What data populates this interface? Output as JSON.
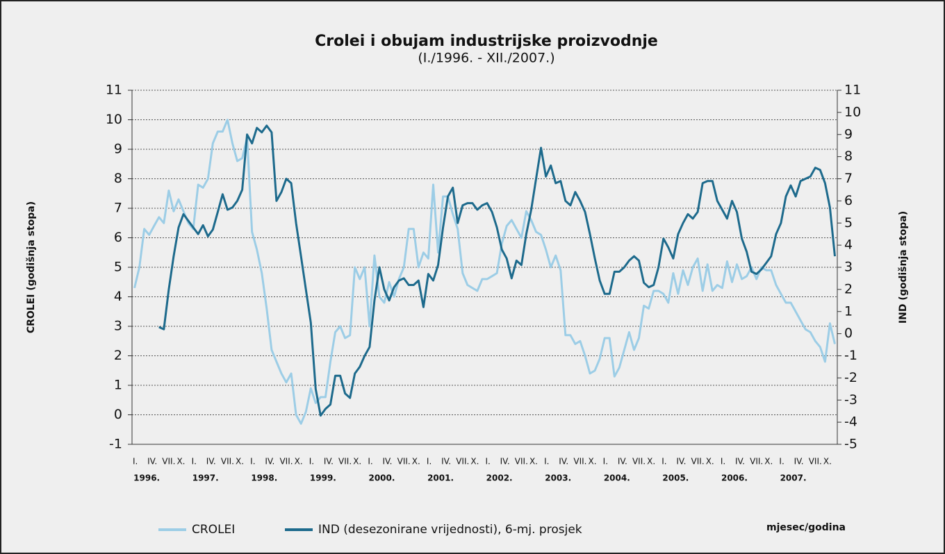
{
  "chart_data": {
    "type": "line",
    "title": "Crolei i obujam industrijske proizvodnje",
    "subtitle": "(I./1996. - XII./2007.)",
    "ylabel": "CROLEI (godišnja stopa)",
    "y2label": "IND (godišnja stopa)",
    "xlabel": "mjesec/godina",
    "categories": [
      "I.",
      null,
      null,
      "IV.",
      null,
      null,
      "VII.",
      null,
      null,
      "X.",
      null,
      null,
      "I.",
      null,
      null,
      "IV.",
      null,
      null,
      "VII.",
      null,
      null,
      "X.",
      null,
      null,
      "I.",
      null,
      null,
      "IV.",
      null,
      null,
      "VII.",
      null,
      null,
      "X.",
      null,
      null,
      "I.",
      null,
      null,
      "IV.",
      null,
      null,
      "VII.",
      null,
      null,
      "X.",
      null,
      null,
      "I.",
      null,
      null,
      "IV.",
      null,
      null,
      "VII.",
      null,
      null,
      "X.",
      null,
      null,
      "I.",
      null,
      null,
      "IV.",
      null,
      null,
      "VII.",
      null,
      null,
      "X.",
      null,
      null,
      "I.",
      null,
      null,
      "IV.",
      null,
      null,
      "VII.",
      null,
      null,
      "X.",
      null,
      null,
      "I.",
      null,
      null,
      "IV.",
      null,
      null,
      "VII.",
      null,
      null,
      "X.",
      null,
      null,
      "I.",
      null,
      null,
      "IV.",
      null,
      null,
      "VII.",
      null,
      null,
      "X.",
      null,
      null,
      "I.",
      null,
      null,
      "IV.",
      null,
      null,
      "VII.",
      null,
      null,
      "X.",
      null,
      null,
      "I.",
      null,
      null,
      "IV.",
      null,
      null,
      "VII.",
      null,
      null,
      "X.",
      null,
      null,
      "I.",
      null,
      null,
      "IV.",
      null,
      null,
      "VII.",
      null,
      null,
      "X.",
      null,
      null
    ],
    "years": [
      "1996.",
      "1997.",
      "1998.",
      "1999.",
      "2000.",
      "2001.",
      "2002.",
      "2003.",
      "2004.",
      "2005.",
      "2006.",
      "2007."
    ],
    "ylim": [
      -1,
      11
    ],
    "yticks": [
      -1,
      0,
      1,
      2,
      3,
      4,
      5,
      6,
      7,
      8,
      9,
      10,
      11
    ],
    "y2lim": [
      -5,
      11
    ],
    "y2ticks": [
      -5,
      -4,
      -3,
      -2,
      -1,
      0,
      1,
      2,
      3,
      4,
      5,
      6,
      7,
      8,
      9,
      10,
      11
    ],
    "grid": true,
    "series": [
      {
        "name": "CROLEI",
        "color": "#9ccde6",
        "values": [
          4.3,
          5.0,
          6.3,
          6.1,
          6.4,
          6.7,
          6.5,
          7.6,
          6.9,
          7.3,
          6.9,
          6.5,
          6.3,
          7.8,
          7.7,
          8.0,
          9.2,
          9.6,
          9.6,
          10.0,
          9.2,
          8.6,
          8.7,
          9.4,
          6.2,
          5.6,
          4.8,
          3.6,
          2.2,
          1.8,
          1.4,
          1.1,
          1.4,
          0.0,
          -0.3,
          0.1,
          0.9,
          0.4,
          0.6,
          0.6,
          1.8,
          2.8,
          3.0,
          2.6,
          2.7,
          5.0,
          4.6,
          5.0,
          3.0,
          5.4,
          4.0,
          3.8,
          4.5,
          4.0,
          4.6,
          5.0,
          6.3,
          6.3,
          5.0,
          5.5,
          5.3,
          7.8,
          5.5,
          7.4,
          7.4,
          6.8,
          6.3,
          4.8,
          4.4,
          4.3,
          4.2,
          4.6,
          4.6,
          4.7,
          4.8,
          5.8,
          6.4,
          6.6,
          6.3,
          6.0,
          6.9,
          6.6,
          6.2,
          6.1,
          5.6,
          5.0,
          5.4,
          4.9,
          2.7,
          2.7,
          2.4,
          2.5,
          2.0,
          1.4,
          1.5,
          1.9,
          2.6,
          2.6,
          1.3,
          1.6,
          2.2,
          2.8,
          2.2,
          2.6,
          3.7,
          3.6,
          4.2,
          4.2,
          4.1,
          3.8,
          4.8,
          4.1,
          4.9,
          4.4,
          5.0,
          5.3,
          4.2,
          5.1,
          4.2,
          4.4,
          4.3,
          5.2,
          4.5,
          5.1,
          4.6,
          4.7,
          5.0,
          4.6,
          5.0,
          4.9,
          4.9,
          4.4,
          4.1,
          3.8,
          3.8,
          3.5,
          3.2,
          2.9,
          2.8,
          2.5,
          2.3,
          1.8,
          3.1,
          2.4
        ]
      },
      {
        "name": "IND (desezonirane vrijednosti), 6-mj. prosjek",
        "color": "#1d6a8c",
        "axis": "y2",
        "values": [
          null,
          null,
          null,
          null,
          null,
          0.3,
          0.2,
          2.0,
          3.5,
          4.8,
          5.4,
          5.1,
          4.8,
          4.5,
          4.9,
          4.4,
          4.7,
          5.5,
          6.3,
          5.6,
          5.7,
          6.0,
          6.5,
          9.0,
          8.6,
          9.3,
          9.1,
          9.4,
          9.1,
          6.0,
          6.4,
          7.0,
          6.8,
          5.0,
          3.5,
          2.0,
          0.5,
          -2.5,
          -3.7,
          -3.4,
          -3.2,
          -1.9,
          -1.9,
          -2.7,
          -2.9,
          -1.8,
          -1.5,
          -1.0,
          -0.6,
          1.5,
          3.0,
          2.0,
          1.5,
          2.1,
          2.4,
          2.5,
          2.2,
          2.2,
          2.4,
          1.2,
          2.7,
          2.4,
          3.1,
          4.8,
          6.2,
          6.6,
          5.0,
          5.8,
          5.9,
          5.9,
          5.6,
          5.8,
          5.9,
          5.5,
          4.8,
          3.8,
          3.4,
          2.5,
          3.3,
          3.1,
          4.5,
          5.6,
          7.0,
          8.4,
          7.1,
          7.6,
          6.8,
          6.9,
          6.0,
          5.8,
          6.4,
          6.0,
          5.5,
          4.5,
          3.4,
          2.4,
          1.8,
          1.8,
          2.8,
          2.8,
          3.0,
          3.3,
          3.5,
          3.3,
          2.3,
          2.1,
          2.2,
          3.0,
          4.3,
          3.9,
          3.4,
          4.5,
          5.0,
          5.4,
          5.2,
          5.5,
          6.8,
          6.9,
          6.9,
          6.0,
          5.6,
          5.2,
          6.0,
          5.5,
          4.3,
          3.7,
          2.8,
          2.7,
          2.9,
          3.2,
          3.5,
          4.5,
          5.0,
          6.2,
          6.7,
          6.2,
          6.9,
          7.0,
          7.1,
          7.5,
          7.4,
          6.8,
          5.7,
          3.5
        ]
      }
    ]
  }
}
